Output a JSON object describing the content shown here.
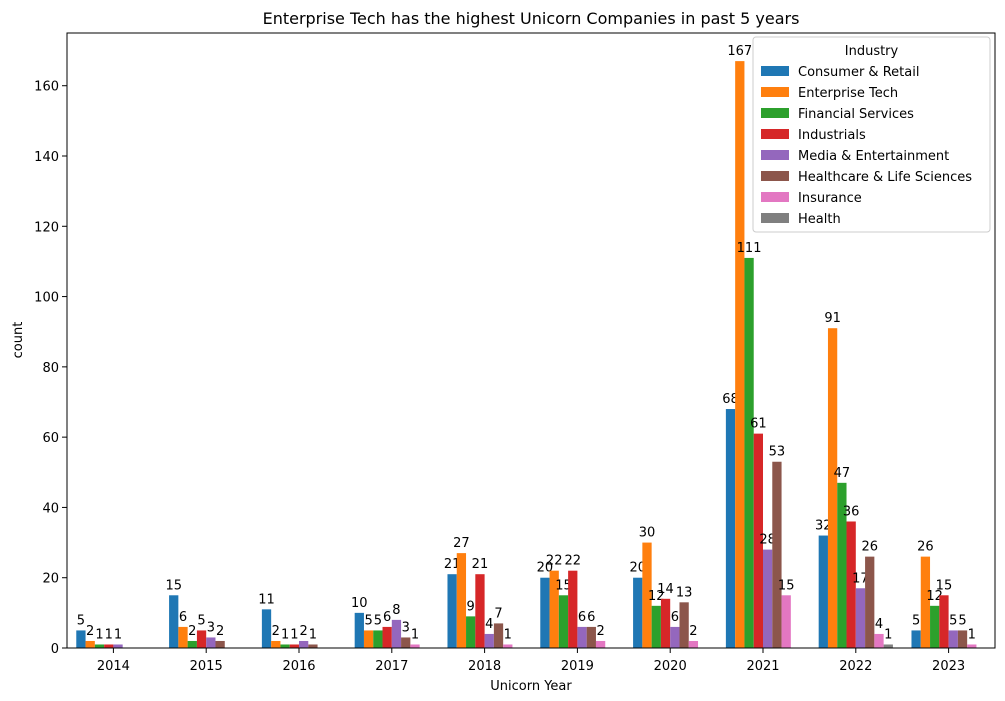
{
  "chart_data": {
    "type": "bar",
    "title": "Enterprise Tech has the highest Unicorn Companies in past 5 years",
    "xlabel": "Unicorn Year",
    "ylabel": "count",
    "ylim": [
      0,
      175
    ],
    "yticks": [
      0,
      20,
      40,
      60,
      80,
      100,
      120,
      140,
      160
    ],
    "categories": [
      "2014",
      "2015",
      "2016",
      "2017",
      "2018",
      "2019",
      "2020",
      "2021",
      "2022",
      "2023"
    ],
    "legend": {
      "title": "Industry",
      "placement": "top-right"
    },
    "series": [
      {
        "name": "Consumer & Retail",
        "color": "#1f77b4",
        "values": [
          5,
          15,
          11,
          10,
          21,
          20,
          20,
          68,
          32,
          5
        ]
      },
      {
        "name": "Enterprise Tech",
        "color": "#ff7f0e",
        "values": [
          2,
          6,
          2,
          5,
          27,
          22,
          30,
          167,
          91,
          26
        ]
      },
      {
        "name": "Financial Services",
        "color": "#2ca02c",
        "values": [
          1,
          2,
          1,
          5,
          9,
          15,
          12,
          111,
          47,
          12
        ]
      },
      {
        "name": "Industrials",
        "color": "#d62728",
        "values": [
          1,
          5,
          1,
          6,
          21,
          22,
          14,
          61,
          36,
          15
        ]
      },
      {
        "name": "Media & Entertainment",
        "color": "#9467bd",
        "values": [
          1,
          3,
          2,
          8,
          4,
          6,
          6,
          28,
          17,
          5
        ]
      },
      {
        "name": "Healthcare & Life Sciences",
        "color": "#8c564b",
        "values": [
          null,
          2,
          1,
          3,
          7,
          6,
          13,
          53,
          26,
          5
        ]
      },
      {
        "name": "Insurance",
        "color": "#e377c2",
        "values": [
          null,
          null,
          null,
          1,
          1,
          2,
          2,
          15,
          4,
          1
        ]
      },
      {
        "name": "Health",
        "color": "#7f7f7f",
        "values": [
          null,
          null,
          null,
          null,
          null,
          null,
          null,
          null,
          1,
          null
        ]
      }
    ]
  }
}
